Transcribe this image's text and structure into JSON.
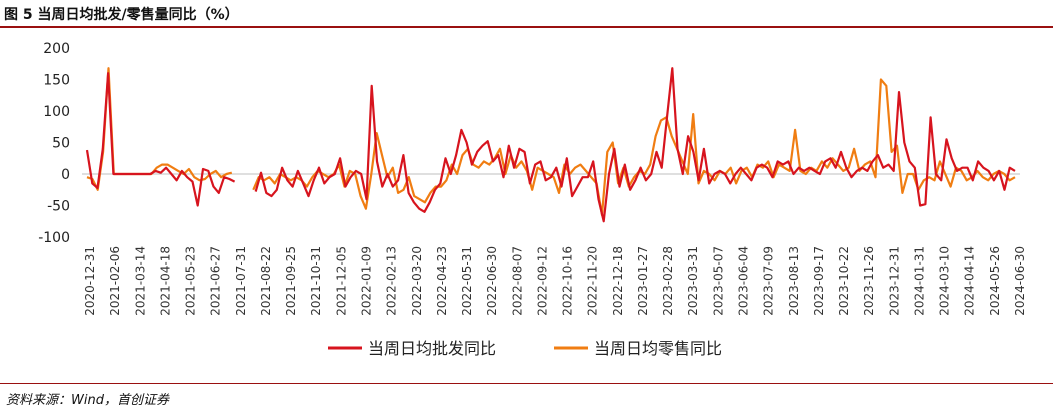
{
  "title": "图 5 当周日均批发/零售量同比（%）",
  "source": "资料来源：Wind，首创证券",
  "chart_data": {
    "type": "line",
    "ylim": [
      -100,
      200
    ],
    "yticks": [
      200,
      150,
      100,
      50,
      0,
      -50,
      -100
    ],
    "xticks": [
      "2020-12-31",
      "2021-02-06",
      "2021-03-14",
      "2021-04-18",
      "2021-05-23",
      "2021-06-27",
      "2021-07-31",
      "2021-08-22",
      "2021-09-25",
      "2021-10-31",
      "2021-12-05",
      "2022-01-09",
      "2022-02-13",
      "2022-03-20",
      "2022-04-23",
      "2022-05-31",
      "2022-06-30",
      "2022-08-07",
      "2022-09-12",
      "2022-10-16",
      "2022-11-20",
      "2022-12-18",
      "2023-01-27",
      "2023-02-28",
      "2023-03-31",
      "2023-05-07",
      "2023-06-04",
      "2023-07-09",
      "2023-08-13",
      "2023-09-17",
      "2023-10-22",
      "2023-11-26",
      "2023-12-31",
      "2024-01-31",
      "2024-03-10",
      "2024-04-14",
      "2024-05-26",
      "2024-06-30"
    ],
    "legend_position": "bottom",
    "series": [
      {
        "name": "当周日均批发同比",
        "color": "#d7141e",
        "values": [
          38,
          -15,
          -22,
          40,
          160,
          0,
          0,
          0,
          0,
          0,
          0,
          0,
          0,
          5,
          2,
          10,
          0,
          -10,
          5,
          -5,
          -12,
          -50,
          8,
          5,
          -20,
          -30,
          -5,
          -8,
          -12,
          null,
          null,
          null,
          -28,
          2,
          -30,
          -35,
          -25,
          10,
          -10,
          -20,
          5,
          -15,
          -35,
          -10,
          10,
          -15,
          -5,
          0,
          25,
          -20,
          -5,
          5,
          0,
          -40,
          140,
          20,
          -20,
          0,
          -20,
          -10,
          30,
          -30,
          -45,
          -55,
          -60,
          -45,
          -25,
          -15,
          25,
          0,
          30,
          70,
          50,
          15,
          35,
          45,
          52,
          20,
          30,
          -5,
          45,
          10,
          40,
          35,
          -15,
          15,
          20,
          -10,
          -5,
          10,
          -20,
          25,
          -35,
          -20,
          -5,
          -5,
          20,
          -40,
          -75,
          0,
          40,
          -20,
          15,
          -25,
          -10,
          10,
          -10,
          0,
          35,
          10,
          90,
          168,
          40,
          0,
          60,
          35,
          -10,
          40,
          -15,
          0,
          5,
          0,
          -15,
          0,
          10,
          0,
          -10,
          10,
          15,
          10,
          -5,
          20,
          15,
          20,
          0,
          10,
          5,
          10,
          5,
          0,
          20,
          25,
          10,
          35,
          10,
          -5,
          5,
          10,
          5,
          20,
          30,
          10,
          15,
          5,
          130,
          50,
          20,
          10,
          -50,
          -48,
          90,
          0,
          -10,
          55,
          25,
          5,
          10,
          10,
          -10,
          20,
          10,
          5,
          -10,
          5,
          -25,
          10,
          5
        ]
      },
      {
        "name": "当周日均零售同比",
        "color": "#f07d12",
        "values": [
          -5,
          -8,
          -25,
          35,
          168,
          0,
          0,
          0,
          0,
          0,
          0,
          0,
          0,
          10,
          15,
          15,
          10,
          5,
          0,
          8,
          -5,
          -10,
          -8,
          0,
          5,
          -5,
          0,
          2,
          null,
          null,
          null,
          -25,
          -5,
          -10,
          -5,
          -15,
          0,
          -5,
          -10,
          -5,
          -10,
          -20,
          -5,
          5,
          0,
          -5,
          0,
          15,
          -20,
          5,
          0,
          -35,
          -55,
          0,
          65,
          30,
          -5,
          10,
          -30,
          -25,
          -5,
          -35,
          -40,
          -45,
          -30,
          -20,
          -20,
          -10,
          15,
          0,
          30,
          40,
          15,
          10,
          20,
          15,
          25,
          40,
          0,
          30,
          10,
          20,
          5,
          -25,
          10,
          5,
          0,
          -5,
          -30,
          15,
          0,
          10,
          15,
          5,
          -5,
          -15,
          -65,
          35,
          50,
          -15,
          10,
          -20,
          -5,
          5,
          0,
          15,
          60,
          85,
          90,
          60,
          40,
          20,
          0,
          95,
          -15,
          5,
          0,
          -10,
          5,
          0,
          10,
          -15,
          5,
          10,
          -5,
          15,
          10,
          20,
          -5,
          15,
          10,
          5,
          70,
          5,
          0,
          10,
          5,
          20,
          10,
          25,
          15,
          5,
          10,
          40,
          5,
          15,
          20,
          -5,
          150,
          140,
          35,
          45,
          -30,
          0,
          0,
          -25,
          -10,
          -5,
          -10,
          20,
          0,
          -20,
          10,
          5,
          -10,
          -5,
          5,
          -5,
          -10,
          0,
          5,
          0,
          -10,
          -5
        ]
      }
    ]
  }
}
